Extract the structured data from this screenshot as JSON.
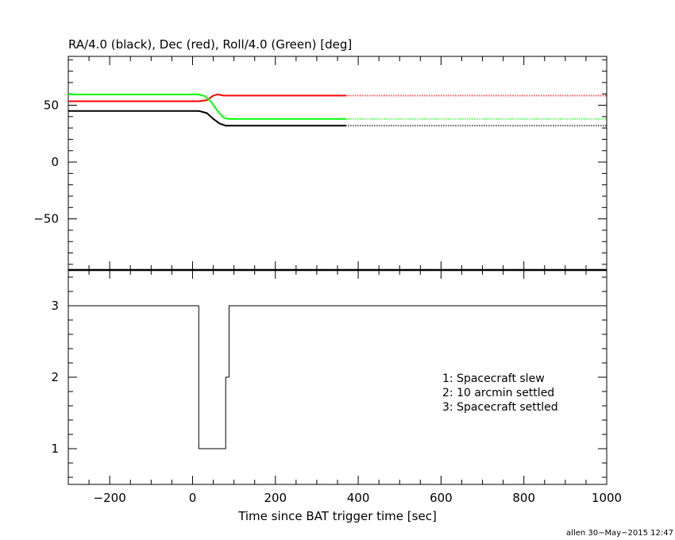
{
  "chart_data": [
    {
      "type": "line",
      "title": "RA/4.0 (black), Dec (red), Roll/4.0 (Green) [deg]",
      "xlim": [
        -300,
        1000
      ],
      "ylim": [
        -95,
        93
      ],
      "x_ticks": [
        -200,
        0,
        200,
        400,
        600,
        800,
        1000
      ],
      "y_ticks": [
        -50,
        0,
        50
      ],
      "y_tick_labels": [
        "−50",
        "0",
        "50"
      ],
      "series": [
        {
          "color": "#ff0000",
          "x": [
            -300,
            15,
            35,
            50,
            60,
            75,
            100,
            370
          ],
          "y": [
            53.5,
            53.5,
            54.5,
            58.5,
            59.5,
            58.5,
            58.5,
            58.5
          ],
          "extension": {
            "x": [
              370,
              1000
            ],
            "y": [
              58.5,
              58.5
            ],
            "style": "dotted"
          }
        },
        {
          "color": "#00ff00",
          "x": [
            -300,
            15,
            30,
            45,
            60,
            75,
            85,
            100,
            370
          ],
          "y": [
            59.5,
            59.5,
            58,
            53,
            45,
            39,
            38,
            38,
            38
          ],
          "extension": {
            "x": [
              370,
              1000
            ],
            "y": [
              38,
              38
            ],
            "style": "dotted"
          }
        },
        {
          "color": "#000000",
          "x": [
            -300,
            15,
            35,
            50,
            65,
            80,
            100,
            370
          ],
          "y": [
            45,
            45,
            43,
            38,
            34,
            32,
            32,
            32
          ],
          "extension": {
            "x": [
              370,
              1000
            ],
            "y": [
              32,
              32
            ],
            "style": "dotted"
          }
        }
      ]
    },
    {
      "type": "line",
      "xlabel": "Time since BAT trigger time [sec]",
      "xlim": [
        -300,
        1000
      ],
      "ylim": [
        0.5,
        3.5
      ],
      "x_ticks": [
        -200,
        0,
        200,
        400,
        600,
        800,
        1000
      ],
      "x_tick_labels": [
        "−200",
        "0",
        "200",
        "400",
        "600",
        "800",
        "1000"
      ],
      "y_ticks": [
        1,
        2,
        3
      ],
      "y_tick_labels": [
        "1",
        "2",
        "3"
      ],
      "step": true,
      "series": [
        {
          "color": "#000000",
          "x": [
            -300,
            15,
            15,
            80,
            80,
            88,
            88,
            1000
          ],
          "y": [
            3,
            3,
            1,
            1,
            2,
            2,
            3,
            3
          ]
        }
      ],
      "annotations": [
        "1: Spacecraft slew",
        "2: 10 arcmin settled",
        "3: Spacecraft settled"
      ]
    }
  ],
  "credit": "allen 30−May−2015 12:47"
}
